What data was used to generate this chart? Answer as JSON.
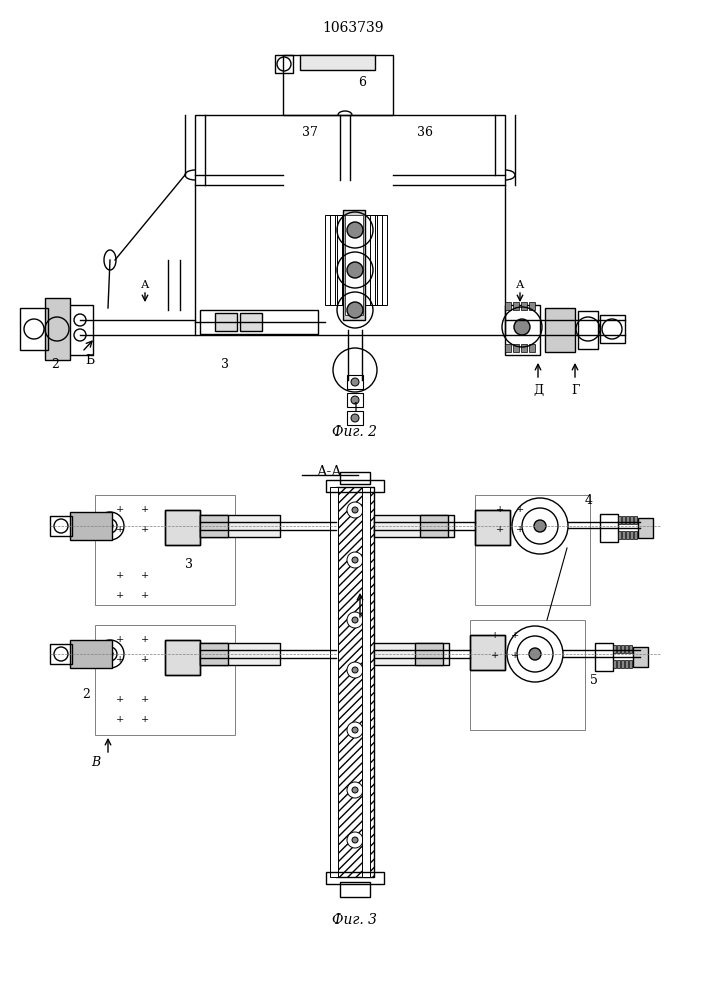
{
  "title": "1063739",
  "fig2_label": "Фиг. 2",
  "fig3_label": "Фиг. 3",
  "fig3_title": "А-А",
  "bg_color": "#ffffff",
  "line_color": "#000000",
  "line_width": 1.0,
  "fig_width": 7.07,
  "fig_height": 10.0,
  "dpi": 100
}
